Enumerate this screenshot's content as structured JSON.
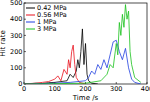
{
  "chart_data": {
    "type": "line",
    "x_label": "Time /s",
    "y_label": "Hit rate",
    "xlim": [
      0,
      400
    ],
    "ylim": [
      0,
      500
    ],
    "xticks": [
      0,
      100,
      200,
      300,
      400
    ],
    "yticks": [
      0,
      100,
      200,
      300,
      400,
      500
    ],
    "legend": "upper left",
    "grid": false,
    "series": [
      {
        "name": "0.42 MPa",
        "color": "#000000",
        "marker": "none",
        "line_style": "solid",
        "x": [
          0,
          20,
          40,
          60,
          80,
          100,
          120,
          140,
          150,
          160,
          170,
          175,
          180,
          185,
          190,
          195,
          200,
          205,
          210,
          220,
          240
        ],
        "values": [
          0,
          2,
          5,
          3,
          8,
          10,
          15,
          20,
          60,
          40,
          80,
          150,
          100,
          200,
          340,
          120,
          250,
          60,
          20,
          5,
          0
        ]
      },
      {
        "name": "0.56 MPa",
        "color": "#e8101c",
        "marker": "none",
        "line_style": "solid",
        "x": [
          0,
          20,
          40,
          60,
          80,
          100,
          110,
          120,
          130,
          140,
          145,
          150,
          155,
          160,
          165,
          170,
          180,
          200
        ],
        "values": [
          0,
          3,
          5,
          10,
          15,
          30,
          50,
          20,
          90,
          60,
          150,
          100,
          200,
          240,
          120,
          40,
          10,
          0
        ]
      },
      {
        "name": "1 MPa",
        "color": "#1f3fe0",
        "marker": "none",
        "line_style": "solid",
        "x": [
          0,
          50,
          100,
          150,
          200,
          210,
          220,
          230,
          240,
          250,
          260,
          270,
          280,
          290,
          300,
          310,
          320,
          330,
          340,
          350,
          360,
          380
        ],
        "values": [
          0,
          2,
          5,
          10,
          20,
          40,
          80,
          60,
          120,
          90,
          150,
          100,
          180,
          260,
          270,
          200,
          150,
          220,
          100,
          30,
          10,
          0
        ]
      },
      {
        "name": "3 MPa",
        "color": "#19c21c",
        "marker": "none",
        "line_style": "solid",
        "x": [
          0,
          100,
          200,
          250,
          270,
          280,
          290,
          300,
          305,
          310,
          315,
          320,
          325,
          330,
          335,
          340,
          345,
          350,
          360,
          380
        ],
        "values": [
          0,
          2,
          5,
          20,
          60,
          120,
          100,
          250,
          180,
          380,
          300,
          430,
          350,
          490,
          400,
          450,
          200,
          120,
          40,
          10
        ]
      }
    ]
  }
}
